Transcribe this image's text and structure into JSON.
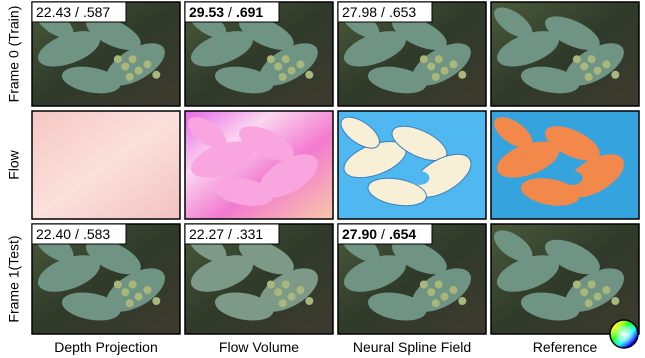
{
  "row_labels": [
    "Frame 0 (Train)",
    "Flow",
    "Frame 1(Test)"
  ],
  "column_labels": [
    "Depth Projection",
    "Flow Volume",
    "Neural Spline Field",
    "Reference"
  ],
  "separator": "/",
  "metrics": [
    [
      {
        "psnr": "22.43",
        "ssim": ".587",
        "best": false
      },
      {
        "psnr": "29.53",
        "ssim": ".691",
        "best": true
      },
      {
        "psnr": "27.98",
        "ssim": ".653",
        "best": false
      }
    ],
    [
      {
        "psnr": "22.40",
        "ssim": ".583",
        "best": false
      },
      {
        "psnr": "22.27",
        "ssim": ".331",
        "best": false
      },
      {
        "psnr": "27.90",
        "ssim": ".654",
        "best": true
      }
    ]
  ]
}
